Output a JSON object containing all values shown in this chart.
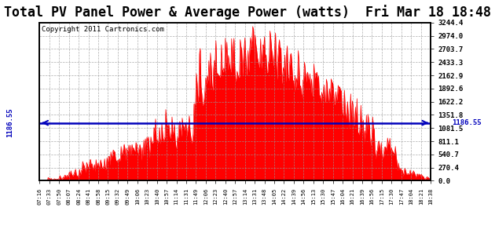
{
  "title": "Total PV Panel Power & Average Power (watts)  Fri Mar 18 18:48",
  "copyright": "Copyright 2011 Cartronics.com",
  "avg_line_value": 1186.55,
  "avg_line_label": "1186.55",
  "ymax": 3244.4,
  "ymin": 0.0,
  "yticks": [
    0.0,
    270.4,
    540.7,
    811.1,
    1081.5,
    1351.8,
    1622.2,
    1892.6,
    2162.9,
    2433.3,
    2703.7,
    2974.0,
    3244.4
  ],
  "bar_color": "#FF0000",
  "line_color": "#0000BB",
  "bg_color": "#FFFFFF",
  "plot_bg_color": "#FFFFFF",
  "grid_color": "#999999",
  "title_fontsize": 12,
  "copyright_fontsize": 6.5,
  "xtick_labels": [
    "07:16",
    "07:33",
    "07:50",
    "08:07",
    "08:24",
    "08:41",
    "08:58",
    "09:15",
    "09:32",
    "09:49",
    "10:06",
    "10:23",
    "10:40",
    "10:57",
    "11:14",
    "11:31",
    "11:49",
    "12:06",
    "12:23",
    "12:40",
    "12:57",
    "13:14",
    "13:31",
    "13:48",
    "14:05",
    "14:22",
    "14:39",
    "14:56",
    "15:13",
    "15:30",
    "15:47",
    "16:04",
    "16:21",
    "16:39",
    "16:56",
    "17:15",
    "17:30",
    "17:47",
    "18:04",
    "18:21",
    "18:38"
  ],
  "num_points": 500
}
